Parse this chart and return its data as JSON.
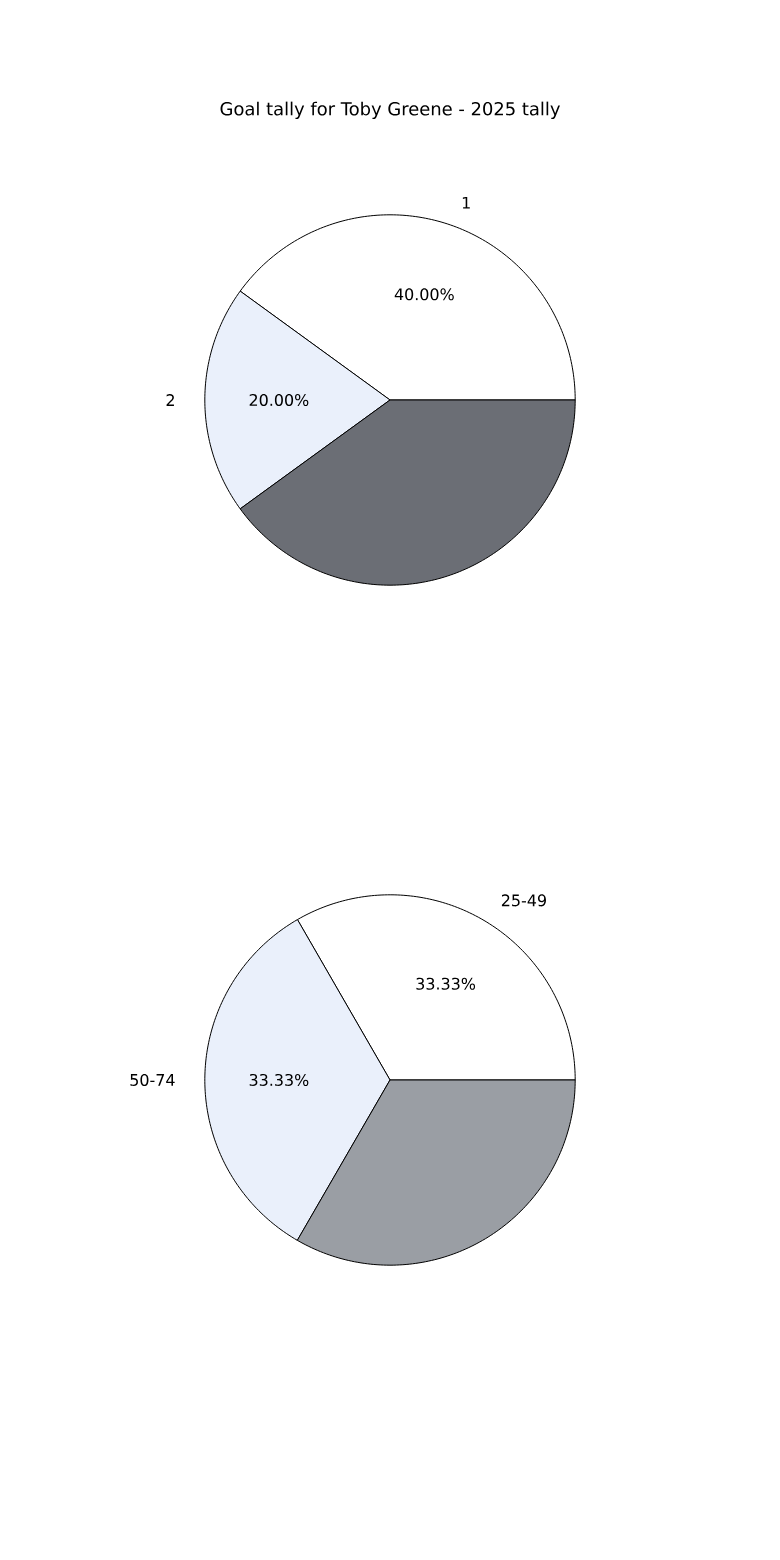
{
  "chart_data": [
    {
      "type": "pie",
      "title": "Goal tally for Toby Greene - 2025 tally",
      "categories": [
        "1",
        "2",
        null
      ],
      "values": [
        40,
        20,
        40
      ],
      "value_labels": [
        "40.00%",
        "20.00%",
        null
      ],
      "colors": [
        "#ffffff",
        "#eaf0fb",
        "#6b6e75"
      ]
    },
    {
      "type": "pie",
      "categories": [
        "25-49",
        "50-74",
        null
      ],
      "values": [
        33.33,
        33.33,
        33.34
      ],
      "value_labels": [
        "33.33%",
        "33.33%",
        null
      ],
      "colors": [
        "#ffffff",
        "#eaf0fb",
        "#9a9ea4"
      ]
    }
  ]
}
